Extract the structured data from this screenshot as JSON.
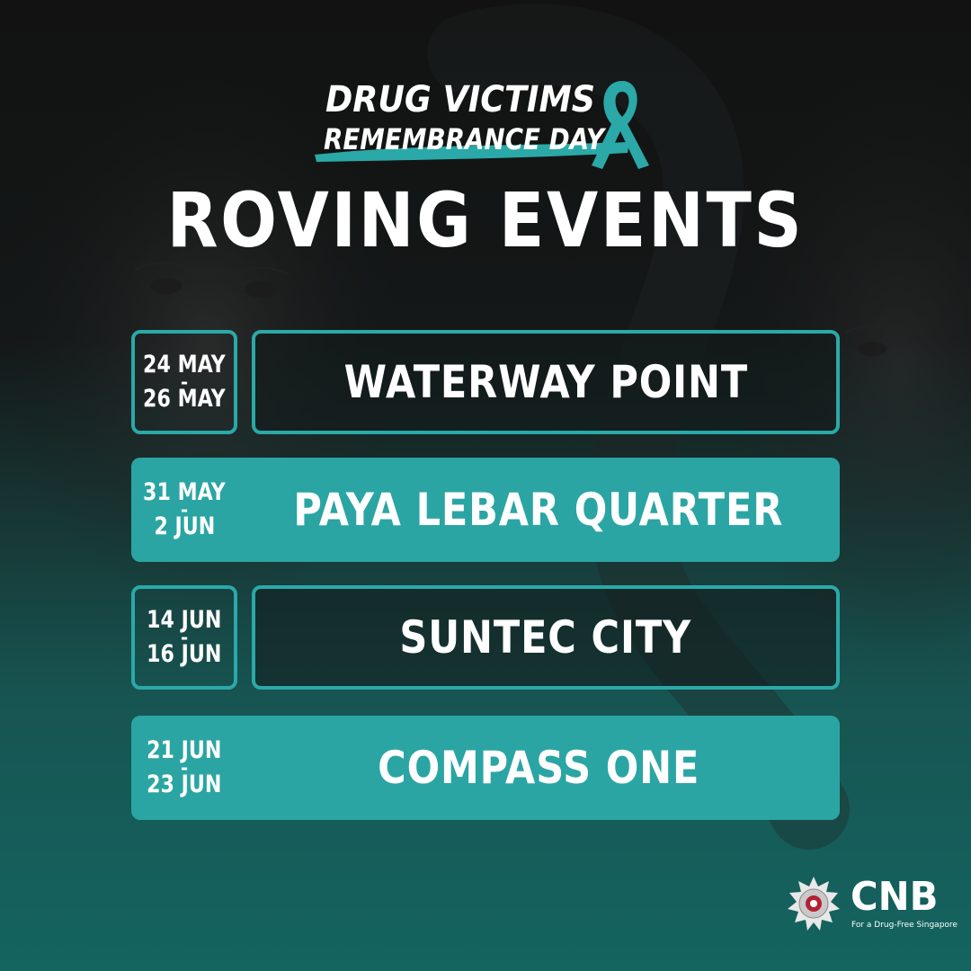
{
  "logo": {
    "line1": "DRUG VICTIMS",
    "line2": "REMEMBRANCE DAY",
    "ribbon_color": "#2aa9a8"
  },
  "title": "ROVING EVENTS",
  "accent_color": "#2aa9a8",
  "events": [
    {
      "date_start": "24 MAY",
      "separator": "-",
      "date_end": "26 MAY",
      "venue": "WATERWAY POINT",
      "style": "outlined"
    },
    {
      "date_start": "31 MAY",
      "separator": "-",
      "date_end": "2 JUN",
      "venue": "PAYA LEBAR QUARTER",
      "style": "filled"
    },
    {
      "date_start": "14 JUN",
      "separator": "-",
      "date_end": "16 JUN",
      "venue": "SUNTEC CITY",
      "style": "outlined"
    },
    {
      "date_start": "21 JUN",
      "separator": "-",
      "date_end": "23 JUN",
      "venue": "COMPASS ONE",
      "style": "filled"
    }
  ],
  "footer": {
    "org": "CNB",
    "tagline": "For a Drug-Free Singapore",
    "badge_icon": "police-crest-icon"
  }
}
